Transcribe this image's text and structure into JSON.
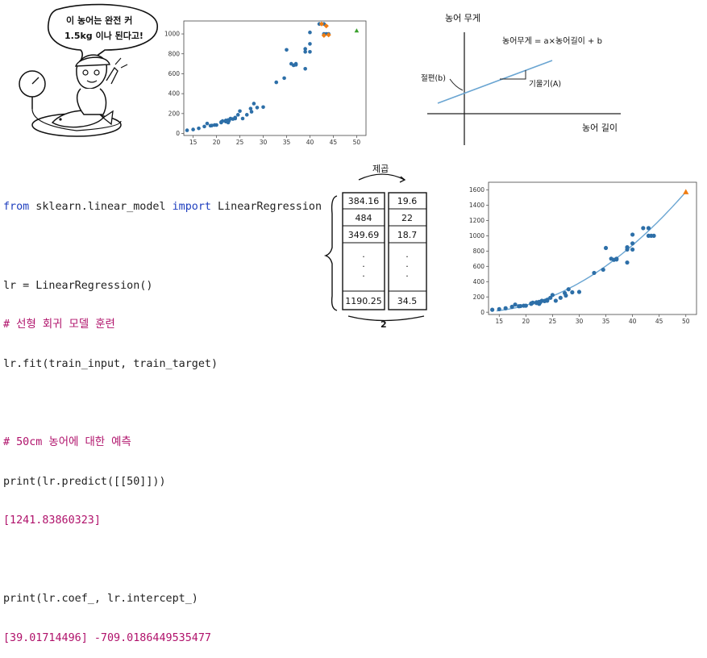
{
  "cartoon": {
    "speech_line1": "이 농어는 완전 커",
    "speech_line2": "1.5kg 이나 된다고!"
  },
  "colors": {
    "points": "#2d6fa8",
    "orange_points": "#f07d12",
    "green_point": "#3aa02d",
    "fit_line": "#6aa5d2",
    "orange_triangle": "#f07d12"
  },
  "chart_top": {
    "type": "scatter",
    "x_ticks": [
      "15",
      "20",
      "25",
      "30",
      "35",
      "40",
      "45",
      "50"
    ],
    "y_ticks": [
      "0",
      "200",
      "400",
      "600",
      "800",
      "1000"
    ],
    "xlim": [
      13,
      52
    ],
    "ylim": [
      -20,
      1130
    ],
    "series": [
      {
        "color": "blue",
        "points": [
          [
            13.7,
            32
          ],
          [
            15,
            40
          ],
          [
            16.2,
            51.5
          ],
          [
            17.4,
            70
          ],
          [
            18,
            100
          ],
          [
            18.7,
            78
          ],
          [
            19,
            80
          ],
          [
            19.6,
            85
          ],
          [
            20,
            85
          ],
          [
            21,
            110
          ],
          [
            21,
            115
          ],
          [
            21.3,
            125
          ],
          [
            22,
            130
          ],
          [
            22,
            120
          ],
          [
            22,
            120
          ],
          [
            22,
            130
          ],
          [
            22.5,
            135
          ],
          [
            22.5,
            110
          ],
          [
            22.7,
            130
          ],
          [
            23,
            150
          ],
          [
            23.5,
            145
          ],
          [
            24,
            150
          ],
          [
            24,
            160
          ],
          [
            24.6,
            188
          ],
          [
            25,
            225
          ],
          [
            25.6,
            150
          ],
          [
            26.5,
            188
          ],
          [
            27.3,
            250
          ],
          [
            27.5,
            218
          ],
          [
            28,
            300
          ],
          [
            28.7,
            260
          ],
          [
            30,
            265
          ],
          [
            32.8,
            514
          ],
          [
            34.5,
            556
          ],
          [
            35,
            840
          ],
          [
            36.5,
            685
          ],
          [
            36,
            700
          ],
          [
            37,
            700
          ],
          [
            37,
            690
          ],
          [
            39,
            650
          ],
          [
            39,
            820
          ],
          [
            39,
            850
          ],
          [
            40,
            900
          ],
          [
            40,
            1015
          ],
          [
            40,
            820
          ],
          [
            42,
            1100
          ],
          [
            43,
            1000
          ],
          [
            43,
            1100
          ],
          [
            43.5,
            1000
          ],
          [
            44,
            1000
          ]
        ]
      },
      {
        "color": "orange",
        "points": [
          [
            42.5,
            1100
          ],
          [
            43,
            985
          ],
          [
            44,
            990
          ],
          [
            43.5,
            1080
          ]
        ]
      },
      {
        "color": "green",
        "points": [
          [
            50,
            1033
          ]
        ]
      }
    ]
  },
  "diagram": {
    "y_axis_label": "농어 무게",
    "x_axis_label": "농어 길이",
    "equation": "농어무게 = a×농어길이 + b",
    "intercept_label": "절편(b)",
    "slope_label": "기울기(A)"
  },
  "code": {
    "line1_kw1": "from",
    "line1_mod": " sklearn.linear_model ",
    "line1_kw2": "import",
    "line1_name": " LinearRegression",
    "line2": "lr = LinearRegression()",
    "line3": "# 선형 회귀 모델 훈련",
    "line4": "lr.fit(train_input, train_target)",
    "line5": "# 50cm 농어에 대한 예측",
    "line6": "print(lr.predict([[50]]))",
    "line7": "[1241.83860323]",
    "line8": "print(lr.coef_, lr.intercept_)",
    "line9": "[39.01714496] -709.0186449535477"
  },
  "matrix": {
    "top_label": "제곱",
    "bottom_label": "2",
    "col1": [
      "384.16",
      "484",
      "349.69",
      ".",
      ".",
      ".",
      "1190.25"
    ],
    "col2": [
      "19.6",
      "22",
      "18.7",
      ".",
      ".",
      ".",
      "34.5"
    ]
  },
  "chart_bottom": {
    "type": "scatter",
    "x_ticks": [
      "15",
      "20",
      "25",
      "30",
      "35",
      "40",
      "45",
      "50"
    ],
    "y_ticks": [
      "0",
      "200",
      "400",
      "600",
      "800",
      "1000",
      "1200",
      "1400",
      "1600"
    ],
    "xlim": [
      13,
      52
    ],
    "ylim": [
      -30,
      1700
    ],
    "curve": "quadratic fit",
    "series": [
      {
        "color": "blue",
        "points": [
          [
            13.7,
            32
          ],
          [
            15,
            40
          ],
          [
            16.2,
            51.5
          ],
          [
            17.4,
            70
          ],
          [
            18,
            100
          ],
          [
            18.7,
            78
          ],
          [
            19,
            80
          ],
          [
            19.6,
            85
          ],
          [
            20,
            85
          ],
          [
            21,
            110
          ],
          [
            21,
            115
          ],
          [
            21.3,
            125
          ],
          [
            22,
            130
          ],
          [
            22,
            120
          ],
          [
            22.5,
            135
          ],
          [
            22.5,
            110
          ],
          [
            22.7,
            130
          ],
          [
            23,
            150
          ],
          [
            23.5,
            145
          ],
          [
            24,
            150
          ],
          [
            24,
            160
          ],
          [
            24.6,
            188
          ],
          [
            25,
            225
          ],
          [
            25.6,
            150
          ],
          [
            26.5,
            188
          ],
          [
            27.3,
            250
          ],
          [
            27.5,
            218
          ],
          [
            28,
            300
          ],
          [
            28.7,
            260
          ],
          [
            30,
            265
          ],
          [
            32.8,
            514
          ],
          [
            34.5,
            556
          ],
          [
            35,
            840
          ],
          [
            36.5,
            685
          ],
          [
            36,
            700
          ],
          [
            37,
            700
          ],
          [
            37,
            690
          ],
          [
            39,
            650
          ],
          [
            39,
            820
          ],
          [
            39,
            850
          ],
          [
            40,
            900
          ],
          [
            40,
            1015
          ],
          [
            40,
            820
          ],
          [
            42,
            1100
          ],
          [
            43,
            1000
          ],
          [
            43,
            1100
          ],
          [
            43.5,
            1000
          ],
          [
            44,
            1000
          ]
        ]
      },
      {
        "color": "orange",
        "points": [
          [
            50,
            1574
          ]
        ]
      }
    ]
  }
}
